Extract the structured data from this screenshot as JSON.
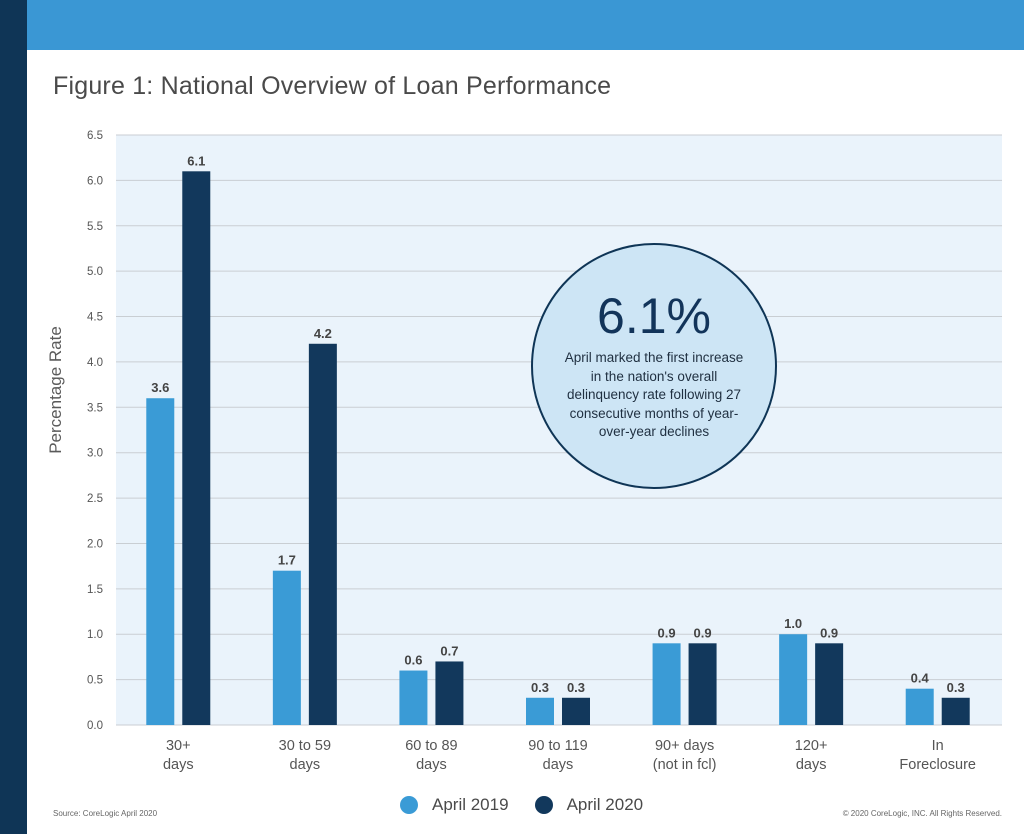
{
  "header": {
    "title": "Figure 1: National Overview of Loan Performance"
  },
  "colors": {
    "april_2019": "#3a9bd6",
    "april_2020": "#12385c",
    "plot_background": "#eaf3fb",
    "gridline": "#c9ced3"
  },
  "callout": {
    "value": "6.1%",
    "text": "April marked the first increase in the nation's overall delinquency rate following 27 consecutive months of year-over-year declines"
  },
  "footer": {
    "source": "Source: CoreLogic April 2020",
    "copyright": "© 2020 CoreLogic, INC. All Rights Reserved."
  },
  "chart_data": {
    "type": "bar",
    "title": "Figure 1: National Overview of Loan Performance",
    "xlabel": "",
    "ylabel": "Percentage Rate",
    "ylim": [
      0,
      6.5
    ],
    "yticks": [
      "0.0",
      "0.5",
      "1.0",
      "1.5",
      "2.0",
      "2.5",
      "3.0",
      "3.5",
      "4.0",
      "4.5",
      "5.0",
      "5.5",
      "6.0",
      "6.5"
    ],
    "grid": true,
    "legend": "bottom-center",
    "categories": [
      [
        "30+",
        "days"
      ],
      [
        "30 to 59",
        "days"
      ],
      [
        "60 to 89",
        "days"
      ],
      [
        "90 to 119",
        "days"
      ],
      [
        "90+ days",
        "(not in fcl)"
      ],
      [
        "120+",
        "days"
      ],
      [
        "In",
        "Foreclosure"
      ]
    ],
    "series": [
      {
        "name": "April 2019",
        "color": "#3a9bd6",
        "values": [
          3.6,
          1.7,
          0.6,
          0.3,
          0.9,
          1.0,
          0.4
        ]
      },
      {
        "name": "April 2020",
        "color": "#12385c",
        "values": [
          6.1,
          4.2,
          0.7,
          0.3,
          0.9,
          0.9,
          0.3
        ]
      }
    ]
  }
}
